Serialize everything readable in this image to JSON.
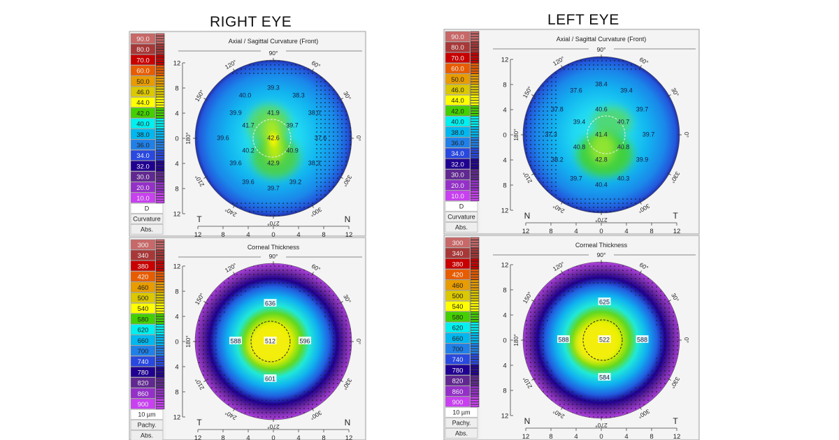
{
  "right_eye": {
    "title": "RIGHT EYE",
    "curvature": {
      "title": "Axial / Sagittal Curvature (Front)",
      "scale": [
        {
          "label": "90.0",
          "color": "#c86868"
        },
        {
          "label": "80.0",
          "color": "#a83838"
        },
        {
          "label": "70.0",
          "color": "#c80000"
        },
        {
          "label": "60.0",
          "color": "#e85c00"
        },
        {
          "label": "50.0",
          "color": "#e89c00"
        },
        {
          "label": "46.0",
          "color": "#dcc800"
        },
        {
          "label": "44.0",
          "color": "#ffff00"
        },
        {
          "label": "42.0",
          "color": "#44d000"
        },
        {
          "label": "40.0",
          "color": "#00f0f0"
        },
        {
          "label": "38.0",
          "color": "#00b8f0"
        },
        {
          "label": "36.0",
          "color": "#2080e8"
        },
        {
          "label": "34.0",
          "color": "#2848e0"
        },
        {
          "label": "32.0",
          "color": "#200090"
        },
        {
          "label": "30.0",
          "color": "#602890"
        },
        {
          "label": "20.0",
          "color": "#9430c8"
        },
        {
          "label": "10.0",
          "color": "#c840f0"
        }
      ],
      "unit": "D",
      "type": "Curvature",
      "mode": "Abs.",
      "left_letter": "T",
      "right_letter": "N",
      "values": [
        "39.3",
        "40.0",
        "38.3",
        "39.9",
        "41.9",
        "38.0",
        "41.7",
        "39.7",
        "39.6",
        "42.6",
        "37.6",
        "40.2",
        "40.9",
        "39.6",
        "42.9",
        "38.3",
        "39.6",
        "39.2",
        "39.7"
      ]
    },
    "pachy": {
      "title": "Corneal Thickness",
      "scale": [
        {
          "label": "300",
          "color": "#c86868"
        },
        {
          "label": "340",
          "color": "#a83838"
        },
        {
          "label": "380",
          "color": "#c80000"
        },
        {
          "label": "420",
          "color": "#e85c00"
        },
        {
          "label": "460",
          "color": "#e89c00"
        },
        {
          "label": "500",
          "color": "#dcc800"
        },
        {
          "label": "540",
          "color": "#ffff00"
        },
        {
          "label": "580",
          "color": "#44d000"
        },
        {
          "label": "620",
          "color": "#00f0f0"
        },
        {
          "label": "660",
          "color": "#00b8f0"
        },
        {
          "label": "700",
          "color": "#2080e8"
        },
        {
          "label": "740",
          "color": "#2848e0"
        },
        {
          "label": "780",
          "color": "#200090"
        },
        {
          "label": "820",
          "color": "#602890"
        },
        {
          "label": "860",
          "color": "#9430c8"
        },
        {
          "label": "900",
          "color": "#c840f0"
        }
      ],
      "unit": "10 µm",
      "type": "Pachy.",
      "mode": "Abs.",
      "left_letter": "T",
      "right_letter": "N",
      "values": [
        "636",
        "588",
        "512",
        "596",
        "601"
      ]
    }
  },
  "left_eye": {
    "title": "LEFT EYE",
    "curvature": {
      "title": "Axial / Sagittal Curvature (Front)",
      "scale": [
        {
          "label": "90.0",
          "color": "#c86868"
        },
        {
          "label": "80.0",
          "color": "#a83838"
        },
        {
          "label": "70.0",
          "color": "#c80000"
        },
        {
          "label": "60.0",
          "color": "#e85c00"
        },
        {
          "label": "50.0",
          "color": "#e89c00"
        },
        {
          "label": "46.0",
          "color": "#dcc800"
        },
        {
          "label": "44.0",
          "color": "#ffff00"
        },
        {
          "label": "42.0",
          "color": "#44d000"
        },
        {
          "label": "40.0",
          "color": "#00f0f0"
        },
        {
          "label": "38.0",
          "color": "#00b8f0"
        },
        {
          "label": "36.0",
          "color": "#2080e8"
        },
        {
          "label": "34.0",
          "color": "#2848e0"
        },
        {
          "label": "32.0",
          "color": "#200090"
        },
        {
          "label": "30.0",
          "color": "#602890"
        },
        {
          "label": "20.0",
          "color": "#9430c8"
        },
        {
          "label": "10.0",
          "color": "#c840f0"
        }
      ],
      "unit": "D",
      "type": "Curvature",
      "mode": "Abs.",
      "left_letter": "N",
      "right_letter": "T",
      "values": [
        "38.4",
        "37.6",
        "39.4",
        "37.8",
        "40.6",
        "39.7",
        "39.4",
        "40.7",
        "37.3",
        "41.4",
        "39.7",
        "40.8",
        "40.8",
        "38.2",
        "42.8",
        "39.9",
        "39.7",
        "40.3",
        "40.4"
      ]
    },
    "pachy": {
      "title": "Corneal Thickness",
      "scale": [
        {
          "label": "300",
          "color": "#c86868"
        },
        {
          "label": "340",
          "color": "#a83838"
        },
        {
          "label": "380",
          "color": "#c80000"
        },
        {
          "label": "420",
          "color": "#e85c00"
        },
        {
          "label": "460",
          "color": "#e89c00"
        },
        {
          "label": "500",
          "color": "#dcc800"
        },
        {
          "label": "540",
          "color": "#ffff00"
        },
        {
          "label": "580",
          "color": "#44d000"
        },
        {
          "label": "620",
          "color": "#00f0f0"
        },
        {
          "label": "660",
          "color": "#00b8f0"
        },
        {
          "label": "700",
          "color": "#2080e8"
        },
        {
          "label": "740",
          "color": "#2848e0"
        },
        {
          "label": "780",
          "color": "#200090"
        },
        {
          "label": "820",
          "color": "#602890"
        },
        {
          "label": "860",
          "color": "#9430c8"
        },
        {
          "label": "900",
          "color": "#c840f0"
        }
      ],
      "unit": "10 µm",
      "type": "Pachy.",
      "mode": "Abs.",
      "left_letter": "N",
      "right_letter": "T",
      "values": [
        "625",
        "588",
        "522",
        "588",
        "584"
      ]
    }
  },
  "axis_ticks": [
    "12",
    "8",
    "4",
    "0",
    "4",
    "8",
    "12"
  ],
  "angle_labels": [
    "0°",
    "30°",
    "60°",
    "90°",
    "120°",
    "150°",
    "180°",
    "210°",
    "240°",
    "270°",
    "300°",
    "330°"
  ]
}
